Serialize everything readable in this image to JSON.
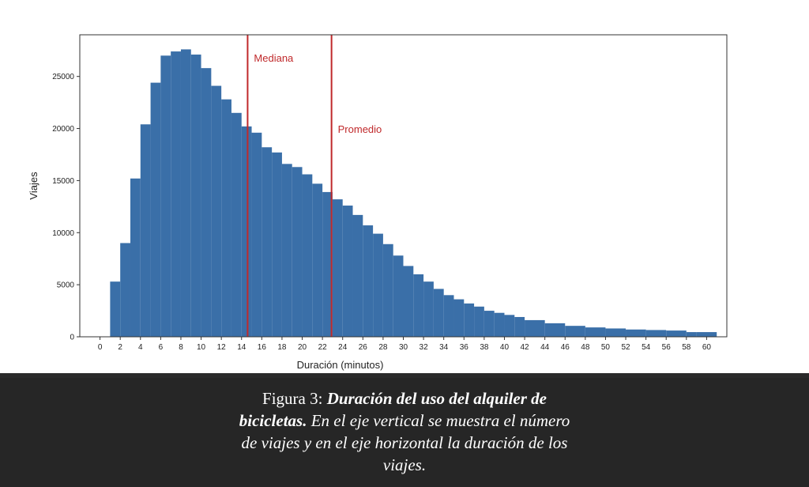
{
  "chart_data": {
    "type": "bar",
    "xlabel": "Duración (minutos)",
    "ylabel": "Viajes",
    "xlim": [
      -2,
      62
    ],
    "ylim": [
      0,
      29000
    ],
    "xticks": [
      0,
      2,
      4,
      6,
      8,
      10,
      12,
      14,
      16,
      18,
      20,
      22,
      24,
      26,
      28,
      30,
      32,
      34,
      36,
      38,
      40,
      42,
      44,
      46,
      48,
      50,
      52,
      54,
      56,
      58,
      60
    ],
    "yticks": [
      0,
      5000,
      10000,
      15000,
      20000,
      25000
    ],
    "bar_color": "#3a6fa8",
    "line_color": "#c0292b",
    "grid": false,
    "bins": [
      {
        "x0": 1,
        "x1": 2,
        "value": 5300
      },
      {
        "x0": 2,
        "x1": 3,
        "value": 9000
      },
      {
        "x0": 3,
        "x1": 4,
        "value": 15200
      },
      {
        "x0": 4,
        "x1": 5,
        "value": 20400
      },
      {
        "x0": 5,
        "x1": 6,
        "value": 24400
      },
      {
        "x0": 6,
        "x1": 7,
        "value": 27000
      },
      {
        "x0": 7,
        "x1": 8,
        "value": 27400
      },
      {
        "x0": 8,
        "x1": 9,
        "value": 27600
      },
      {
        "x0": 9,
        "x1": 10,
        "value": 27100
      },
      {
        "x0": 10,
        "x1": 11,
        "value": 25800
      },
      {
        "x0": 11,
        "x1": 12,
        "value": 24100
      },
      {
        "x0": 12,
        "x1": 13,
        "value": 22800
      },
      {
        "x0": 13,
        "x1": 14,
        "value": 21500
      },
      {
        "x0": 14,
        "x1": 15,
        "value": 20200
      },
      {
        "x0": 15,
        "x1": 16,
        "value": 19600
      },
      {
        "x0": 16,
        "x1": 17,
        "value": 18200
      },
      {
        "x0": 17,
        "x1": 18,
        "value": 17700
      },
      {
        "x0": 18,
        "x1": 19,
        "value": 16600
      },
      {
        "x0": 19,
        "x1": 20,
        "value": 16300
      },
      {
        "x0": 20,
        "x1": 21,
        "value": 15600
      },
      {
        "x0": 21,
        "x1": 22,
        "value": 14700
      },
      {
        "x0": 22,
        "x1": 23,
        "value": 13900
      },
      {
        "x0": 23,
        "x1": 24,
        "value": 13200
      },
      {
        "x0": 24,
        "x1": 25,
        "value": 12600
      },
      {
        "x0": 25,
        "x1": 26,
        "value": 11700
      },
      {
        "x0": 26,
        "x1": 27,
        "value": 10700
      },
      {
        "x0": 27,
        "x1": 28,
        "value": 9900
      },
      {
        "x0": 28,
        "x1": 29,
        "value": 8900
      },
      {
        "x0": 29,
        "x1": 30,
        "value": 7800
      },
      {
        "x0": 30,
        "x1": 31,
        "value": 6800
      },
      {
        "x0": 31,
        "x1": 32,
        "value": 6000
      },
      {
        "x0": 32,
        "x1": 33,
        "value": 5300
      },
      {
        "x0": 33,
        "x1": 34,
        "value": 4600
      },
      {
        "x0": 34,
        "x1": 35,
        "value": 4000
      },
      {
        "x0": 35,
        "x1": 36,
        "value": 3600
      },
      {
        "x0": 36,
        "x1": 37,
        "value": 3200
      },
      {
        "x0": 37,
        "x1": 38,
        "value": 2900
      },
      {
        "x0": 38,
        "x1": 39,
        "value": 2500
      },
      {
        "x0": 39,
        "x1": 40,
        "value": 2300
      },
      {
        "x0": 40,
        "x1": 41,
        "value": 2100
      },
      {
        "x0": 41,
        "x1": 42,
        "value": 1900
      },
      {
        "x0": 42,
        "x1": 44,
        "value": 1600
      },
      {
        "x0": 44,
        "x1": 46,
        "value": 1300
      },
      {
        "x0": 46,
        "x1": 48,
        "value": 1050
      },
      {
        "x0": 48,
        "x1": 50,
        "value": 900
      },
      {
        "x0": 50,
        "x1": 52,
        "value": 800
      },
      {
        "x0": 52,
        "x1": 54,
        "value": 700
      },
      {
        "x0": 54,
        "x1": 56,
        "value": 650
      },
      {
        "x0": 56,
        "x1": 58,
        "value": 600
      },
      {
        "x0": 58,
        "x1": 59,
        "value": 450
      },
      {
        "x0": 59,
        "x1": 61,
        "value": 450
      }
    ],
    "vlines": [
      {
        "label": "Mediana",
        "x": 14.6,
        "label_y": 26400
      },
      {
        "label": "Promedio",
        "x": 22.9,
        "label_y": 19600
      }
    ]
  },
  "caption": {
    "prefix": "Figura 3: ",
    "bold": "Duración del uso del alquiler de bicicletas.",
    "italic": " En el eje vertical se muestra el número de viajes y en el eje horizontal la duración de los viajes."
  }
}
